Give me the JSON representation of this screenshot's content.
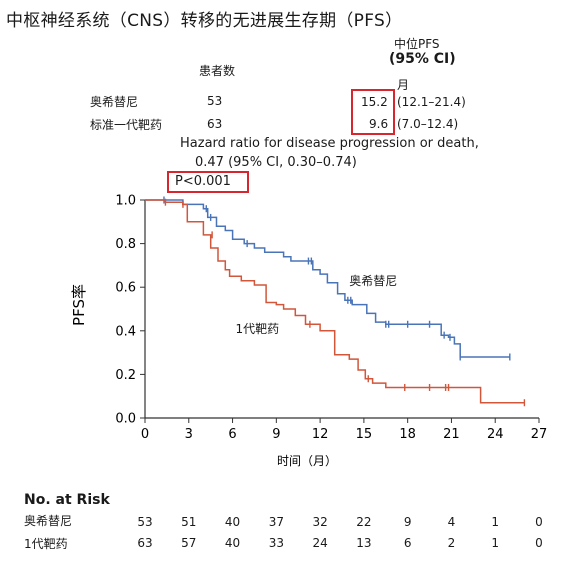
{
  "title": "中枢神经系统（CNS）转移的无进展生存期（PFS）",
  "table": {
    "col_patients": "患者数",
    "col_median": "中位PFS",
    "col_ci": "(95% CI)",
    "col_unit": "月",
    "rows": [
      {
        "name": "奥希替尼",
        "n": "53",
        "median": "15.2",
        "ci": "(12.1–21.4)"
      },
      {
        "name": "标准一代靶药",
        "n": "63",
        "median": "9.6",
        "ci": "(7.0–12.4)"
      }
    ]
  },
  "hazard": {
    "line1": "Hazard ratio for disease progression or death,",
    "line2": "0.47 (95% CI, 0.30–0.74)",
    "pvalue": "P<0.001"
  },
  "colors": {
    "osimertinib": "#4a74b8",
    "standard": "#d1563a",
    "highlight": "#d8262f"
  },
  "chart_data": {
    "type": "line",
    "title": "中枢神经系统（CNS）转移的无进展生存期（PFS）",
    "xlabel": "时间（月）",
    "ylabel": "PFS率",
    "xlim": [
      0,
      27
    ],
    "ylim": [
      0,
      1.0
    ],
    "xticks": [
      0,
      3,
      6,
      9,
      12,
      15,
      18,
      21,
      24,
      27
    ],
    "yticks": [
      "0.0",
      "0.2",
      "0.4",
      "0.6",
      "0.8",
      "1.0"
    ],
    "series": [
      {
        "name": "奥希替尼",
        "label_at": [
          14,
          0.61
        ],
        "points": [
          [
            0,
            1.0
          ],
          [
            2.6,
            1.0
          ],
          [
            2.6,
            0.98
          ],
          [
            4.0,
            0.98
          ],
          [
            4.0,
            0.96
          ],
          [
            4.3,
            0.96
          ],
          [
            4.3,
            0.92
          ],
          [
            4.9,
            0.92
          ],
          [
            4.9,
            0.88
          ],
          [
            5.5,
            0.88
          ],
          [
            5.5,
            0.86
          ],
          [
            6.0,
            0.86
          ],
          [
            6.0,
            0.82
          ],
          [
            6.8,
            0.82
          ],
          [
            6.8,
            0.8
          ],
          [
            7.5,
            0.8
          ],
          [
            7.5,
            0.78
          ],
          [
            8.2,
            0.78
          ],
          [
            8.2,
            0.76
          ],
          [
            9.5,
            0.76
          ],
          [
            9.5,
            0.74
          ],
          [
            10.0,
            0.74
          ],
          [
            10.0,
            0.72
          ],
          [
            11.5,
            0.72
          ],
          [
            11.5,
            0.68
          ],
          [
            12.0,
            0.68
          ],
          [
            12.0,
            0.66
          ],
          [
            12.5,
            0.66
          ],
          [
            12.5,
            0.62
          ],
          [
            13.2,
            0.62
          ],
          [
            13.2,
            0.57
          ],
          [
            13.7,
            0.57
          ],
          [
            13.7,
            0.54
          ],
          [
            14.2,
            0.54
          ],
          [
            14.2,
            0.52
          ],
          [
            15.2,
            0.52
          ],
          [
            15.2,
            0.48
          ],
          [
            15.8,
            0.48
          ],
          [
            15.8,
            0.44
          ],
          [
            16.5,
            0.44
          ],
          [
            16.5,
            0.43
          ],
          [
            20.3,
            0.43
          ],
          [
            20.3,
            0.38
          ],
          [
            20.8,
            0.38
          ],
          [
            20.8,
            0.37
          ],
          [
            21.2,
            0.37
          ],
          [
            21.2,
            0.34
          ],
          [
            21.6,
            0.34
          ],
          [
            21.6,
            0.28
          ],
          [
            25.0,
            0.28
          ]
        ],
        "censors": [
          [
            1.3,
            1.0
          ],
          [
            4.2,
            0.96
          ],
          [
            4.5,
            0.92
          ],
          [
            7.0,
            0.8
          ],
          [
            11.2,
            0.72
          ],
          [
            11.4,
            0.72
          ],
          [
            13.9,
            0.54
          ],
          [
            14.1,
            0.54
          ],
          [
            16.5,
            0.43
          ],
          [
            16.7,
            0.43
          ],
          [
            18.0,
            0.43
          ],
          [
            19.5,
            0.43
          ],
          [
            20.5,
            0.38
          ],
          [
            20.9,
            0.37
          ],
          [
            21.6,
            0.28
          ],
          [
            25.0,
            0.28
          ]
        ]
      },
      {
        "name": "1代靶药",
        "label_at": [
          6.2,
          0.39
        ],
        "points": [
          [
            0,
            1.0
          ],
          [
            1.4,
            1.0
          ],
          [
            1.4,
            0.99
          ],
          [
            2.6,
            0.99
          ],
          [
            2.6,
            0.98
          ],
          [
            2.9,
            0.98
          ],
          [
            2.9,
            0.9
          ],
          [
            4.0,
            0.9
          ],
          [
            4.0,
            0.84
          ],
          [
            4.5,
            0.84
          ],
          [
            4.5,
            0.78
          ],
          [
            5.0,
            0.78
          ],
          [
            5.0,
            0.72
          ],
          [
            5.5,
            0.72
          ],
          [
            5.5,
            0.68
          ],
          [
            5.8,
            0.68
          ],
          [
            5.8,
            0.65
          ],
          [
            6.6,
            0.65
          ],
          [
            6.6,
            0.63
          ],
          [
            7.5,
            0.63
          ],
          [
            7.5,
            0.61
          ],
          [
            8.3,
            0.61
          ],
          [
            8.3,
            0.53
          ],
          [
            9.0,
            0.53
          ],
          [
            9.0,
            0.52
          ],
          [
            9.5,
            0.52
          ],
          [
            9.5,
            0.5
          ],
          [
            10.3,
            0.5
          ],
          [
            10.3,
            0.47
          ],
          [
            11.0,
            0.47
          ],
          [
            11.0,
            0.43
          ],
          [
            12.0,
            0.43
          ],
          [
            12.0,
            0.4
          ],
          [
            13.0,
            0.4
          ],
          [
            13.0,
            0.29
          ],
          [
            14.0,
            0.29
          ],
          [
            14.0,
            0.27
          ],
          [
            14.6,
            0.27
          ],
          [
            14.6,
            0.22
          ],
          [
            15.1,
            0.22
          ],
          [
            15.1,
            0.18
          ],
          [
            15.6,
            0.18
          ],
          [
            15.6,
            0.16
          ],
          [
            16.5,
            0.16
          ],
          [
            16.5,
            0.14
          ],
          [
            23.0,
            0.14
          ],
          [
            23.0,
            0.07
          ],
          [
            26.0,
            0.07
          ]
        ],
        "censors": [
          [
            1.4,
            0.99
          ],
          [
            2.6,
            0.98
          ],
          [
            4.6,
            0.84
          ],
          [
            11.3,
            0.43
          ],
          [
            15.3,
            0.18
          ],
          [
            17.8,
            0.14
          ],
          [
            19.5,
            0.14
          ],
          [
            20.6,
            0.14
          ],
          [
            20.8,
            0.14
          ],
          [
            26.0,
            0.07
          ]
        ]
      }
    ]
  },
  "risk": {
    "title": "No. at Risk",
    "rows": [
      {
        "label": "奥希替尼",
        "values": [
          "53",
          "51",
          "40",
          "37",
          "32",
          "22",
          "9",
          "4",
          "1",
          "0"
        ]
      },
      {
        "label": "1代靶药",
        "values": [
          "63",
          "57",
          "40",
          "33",
          "24",
          "13",
          "6",
          "2",
          "1",
          "0"
        ]
      }
    ]
  }
}
